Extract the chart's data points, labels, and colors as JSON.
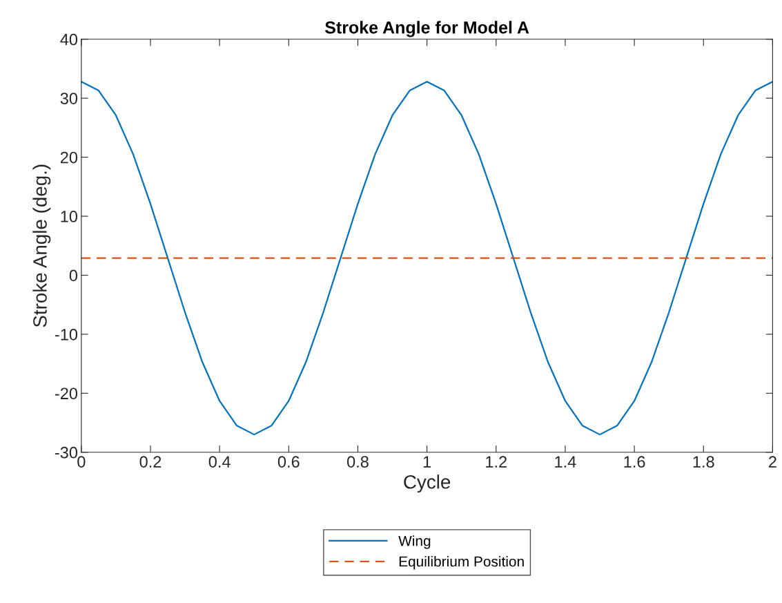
{
  "chart_data": {
    "type": "line",
    "title": "Stroke Angle for Model A",
    "xlabel": "Cycle",
    "ylabel": "Stroke Angle (deg.)",
    "xlim": [
      0,
      2
    ],
    "xticks": [
      0,
      0.2,
      0.4,
      0.6,
      0.8,
      1,
      1.2,
      1.4,
      1.6,
      1.8,
      2
    ],
    "ylim": [
      -30,
      40
    ],
    "yticks": [
      -30,
      -20,
      -10,
      0,
      10,
      20,
      30,
      40
    ],
    "grid": false,
    "legend": "bottom",
    "marker": "none",
    "series": [
      {
        "name": "Wing",
        "color": "#0072bd",
        "line_style": "solid",
        "x": [
          0,
          0.05,
          0.1,
          0.15,
          0.2,
          0.25,
          0.3,
          0.35,
          0.4,
          0.45,
          0.5,
          0.55,
          0.6,
          0.65,
          0.7,
          0.75,
          0.8,
          0.85,
          0.9,
          0.95,
          1,
          1.05,
          1.1,
          1.15,
          1.2,
          1.25,
          1.3,
          1.35,
          1.4,
          1.45,
          1.5,
          1.55,
          1.6,
          1.65,
          1.7,
          1.75,
          1.8,
          1.85,
          1.9,
          1.95,
          2
        ],
        "values": [
          32.8,
          31.3,
          27.1,
          20.5,
          12.1,
          2.9,
          -6.3,
          -14.7,
          -21.3,
          -25.5,
          -27.0,
          -25.5,
          -21.3,
          -14.7,
          -6.3,
          2.9,
          12.1,
          20.5,
          27.1,
          31.3,
          32.8,
          31.3,
          27.1,
          20.5,
          12.1,
          2.9,
          -6.3,
          -14.7,
          -21.3,
          -25.5,
          -27.0,
          -25.5,
          -21.3,
          -14.7,
          -6.3,
          2.9,
          12.1,
          20.5,
          27.1,
          31.3,
          32.8
        ]
      },
      {
        "name": "Equilibrium Position",
        "color": "#d95319",
        "line_style": "dashed",
        "x": [
          0,
          2
        ],
        "values": [
          2.9,
          2.9
        ]
      }
    ]
  }
}
